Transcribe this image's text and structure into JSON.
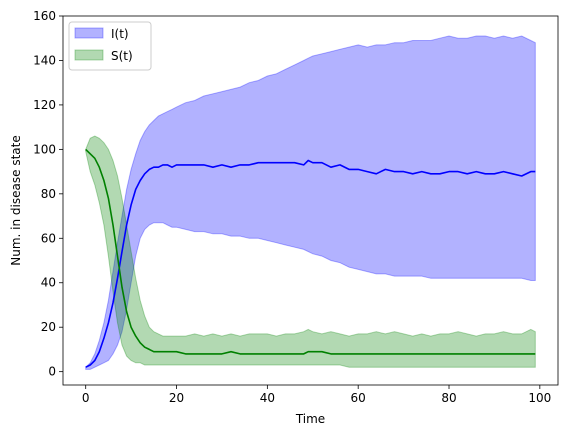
{
  "chart_data": {
    "type": "line",
    "title": "",
    "xlabel": "Time",
    "ylabel": "Num. in disease state",
    "xlim": [
      -5,
      104
    ],
    "ylim": [
      -6,
      160
    ],
    "xticks": [
      0,
      20,
      40,
      60,
      80,
      100
    ],
    "yticks": [
      0,
      20,
      40,
      60,
      80,
      100,
      120,
      140,
      160
    ],
    "grid": false,
    "legend_position": "upper-left",
    "series": [
      {
        "name": "I(t)",
        "color": "#0000ff",
        "band_color": "#b2b2ff",
        "x": [
          0,
          1,
          2,
          3,
          4,
          5,
          6,
          7,
          8,
          9,
          10,
          11,
          12,
          13,
          14,
          15,
          16,
          17,
          18,
          19,
          20,
          22,
          24,
          26,
          28,
          30,
          32,
          34,
          36,
          38,
          40,
          42,
          44,
          46,
          48,
          49,
          50,
          52,
          54,
          56,
          58,
          60,
          62,
          64,
          66,
          68,
          70,
          72,
          74,
          76,
          78,
          80,
          82,
          84,
          86,
          88,
          90,
          92,
          94,
          96,
          98,
          99
        ],
        "mean": [
          2,
          3,
          5,
          9,
          15,
          22,
          31,
          42,
          54,
          66,
          75,
          82,
          86,
          89,
          91,
          92,
          92,
          93,
          93,
          92,
          93,
          93,
          93,
          93,
          92,
          93,
          92,
          93,
          93,
          94,
          94,
          94,
          94,
          94,
          93,
          95,
          94,
          94,
          92,
          93,
          91,
          91,
          90,
          89,
          91,
          90,
          90,
          89,
          90,
          89,
          89,
          90,
          90,
          89,
          90,
          89,
          89,
          90,
          89,
          88,
          90,
          90
        ],
        "upper": [
          2,
          4,
          8,
          14,
          22,
          32,
          45,
          58,
          70,
          82,
          91,
          98,
          104,
          108,
          111,
          113,
          115,
          116,
          117,
          118,
          119,
          121,
          122,
          124,
          125,
          126,
          127,
          128,
          130,
          131,
          133,
          134,
          136,
          138,
          140,
          141,
          142,
          143,
          144,
          145,
          146,
          147,
          146,
          147,
          147,
          148,
          148,
          149,
          149,
          149,
          150,
          151,
          150,
          150,
          151,
          151,
          150,
          151,
          150,
          151,
          149,
          148
        ],
        "lower": [
          1,
          1,
          2,
          3,
          4,
          5,
          8,
          12,
          18,
          28,
          40,
          52,
          60,
          64,
          66,
          67,
          67,
          67,
          66,
          65,
          65,
          64,
          63,
          63,
          62,
          62,
          61,
          61,
          60,
          60,
          59,
          58,
          57,
          56,
          55,
          54,
          53,
          52,
          50,
          49,
          47,
          46,
          45,
          44,
          44,
          43,
          43,
          43,
          43,
          42,
          42,
          42,
          42,
          42,
          42,
          42,
          42,
          42,
          42,
          42,
          41,
          41
        ]
      },
      {
        "name": "S(t)",
        "color": "#008000",
        "band_color": "#b2d8b2",
        "x": [
          0,
          1,
          2,
          3,
          4,
          5,
          6,
          7,
          8,
          9,
          10,
          11,
          12,
          13,
          14,
          15,
          16,
          17,
          18,
          19,
          20,
          22,
          24,
          26,
          28,
          30,
          32,
          34,
          36,
          38,
          40,
          42,
          44,
          46,
          48,
          49,
          50,
          52,
          54,
          56,
          58,
          60,
          62,
          64,
          66,
          68,
          70,
          72,
          74,
          76,
          78,
          80,
          82,
          84,
          86,
          88,
          90,
          92,
          94,
          96,
          98,
          99
        ],
        "mean": [
          100,
          98,
          96,
          92,
          86,
          78,
          66,
          52,
          38,
          27,
          20,
          16,
          13,
          11,
          10,
          9,
          9,
          9,
          9,
          9,
          9,
          8,
          8,
          8,
          8,
          8,
          9,
          8,
          8,
          8,
          8,
          8,
          8,
          8,
          8,
          9,
          9,
          9,
          8,
          8,
          8,
          8,
          8,
          8,
          8,
          8,
          8,
          8,
          8,
          8,
          8,
          8,
          8,
          8,
          8,
          8,
          8,
          8,
          8,
          8,
          8,
          8
        ],
        "upper": [
          100,
          105,
          106,
          105,
          103,
          100,
          95,
          88,
          78,
          66,
          54,
          42,
          32,
          25,
          20,
          18,
          17,
          16,
          16,
          16,
          16,
          16,
          17,
          16,
          17,
          16,
          17,
          16,
          17,
          17,
          17,
          16,
          17,
          17,
          18,
          19,
          18,
          17,
          18,
          17,
          16,
          17,
          17,
          18,
          17,
          18,
          17,
          16,
          17,
          16,
          17,
          17,
          18,
          17,
          16,
          17,
          17,
          18,
          17,
          17,
          19,
          18
        ],
        "lower": [
          99,
          90,
          84,
          76,
          66,
          52,
          36,
          22,
          12,
          7,
          5,
          4,
          4,
          3,
          3,
          3,
          3,
          3,
          3,
          3,
          3,
          3,
          3,
          3,
          3,
          3,
          3,
          3,
          3,
          3,
          3,
          3,
          3,
          3,
          3,
          3,
          3,
          3,
          3,
          3,
          2,
          2,
          2,
          2,
          2,
          2,
          2,
          2,
          2,
          2,
          2,
          2,
          2,
          2,
          2,
          2,
          2,
          2,
          2,
          2,
          2,
          2
        ]
      }
    ]
  }
}
